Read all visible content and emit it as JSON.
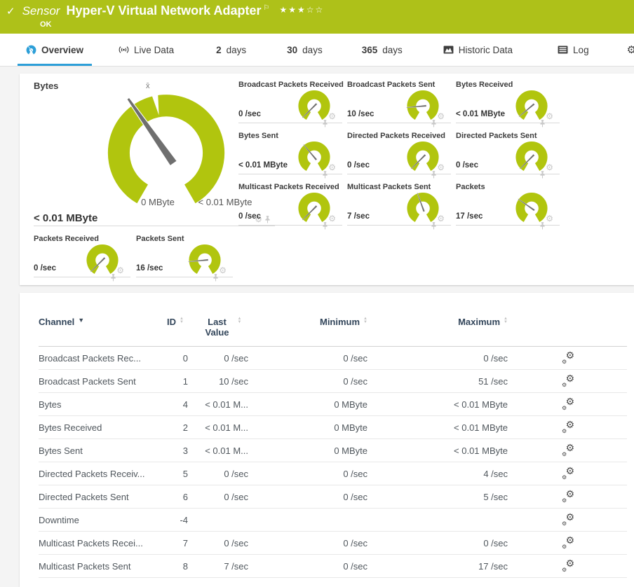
{
  "colors": {
    "green": "#aec119",
    "gauge_green": "#b1c50e",
    "blue": "#2d9fd8"
  },
  "header": {
    "check": "✓",
    "kind_label": "Sensor",
    "title": "Hyper-V Virtual Network Adapter",
    "status": "OK",
    "stars_filled": 3,
    "stars_total": 5
  },
  "tabs": [
    {
      "label": "Overview",
      "icon": "gauge",
      "active": true
    },
    {
      "label": "Live Data",
      "icon": "live"
    },
    {
      "num": "2",
      "label": "days"
    },
    {
      "num": "30",
      "label": "days"
    },
    {
      "num": "365",
      "label": "days"
    },
    {
      "label": "Historic Data",
      "icon": "chart"
    },
    {
      "label": "Log",
      "icon": "log"
    },
    {
      "label": "Settings",
      "icon": "gear"
    }
  ],
  "gauges": {
    "primary": {
      "title": "Bytes",
      "value": "< 0.01 MByte",
      "min_label": "0 MByte",
      "max_label": "< 0.01 MByte",
      "avg_marker": "x̄",
      "needle_angle": -35
    },
    "small": [
      {
        "title": "Broadcast Packets Received",
        "value": "0 /sec",
        "needle_angle": -135
      },
      {
        "title": "Broadcast Packets Sent",
        "value": "10 /sec",
        "needle_angle": -95
      },
      {
        "title": "Bytes Received",
        "value": "< 0.01 MByte",
        "needle_angle": -130
      },
      {
        "title": "Bytes Sent",
        "value": "< 0.01 MByte",
        "needle_angle": -40
      },
      {
        "title": "Directed Packets Received",
        "value": "0 /sec",
        "needle_angle": -135
      },
      {
        "title": "Directed Packets Sent",
        "value": "0 /sec",
        "needle_angle": -135
      },
      {
        "title": "Multicast Packets Received",
        "value": "0 /sec",
        "needle_angle": -135
      },
      {
        "title": "Multicast Packets Sent",
        "value": "7 /sec",
        "needle_angle": -20
      },
      {
        "title": "Packets",
        "value": "17 /sec",
        "needle_angle": -55
      },
      {
        "title": "Packets Received",
        "value": "0 /sec",
        "needle_angle": -135
      },
      {
        "title": "Packets Sent",
        "value": "16 /sec",
        "needle_angle": -95
      }
    ]
  },
  "table": {
    "columns": [
      "Channel",
      "ID",
      "Last Value",
      "Minimum",
      "Maximum"
    ],
    "rows": [
      {
        "channel": "Broadcast Packets Rec...",
        "id": "0",
        "last": "0 /sec",
        "min": "0 /sec",
        "max": "0 /sec"
      },
      {
        "channel": "Broadcast Packets Sent",
        "id": "1",
        "last": "10 /sec",
        "min": "0 /sec",
        "max": "51 /sec"
      },
      {
        "channel": "Bytes",
        "id": "4",
        "last": "< 0.01 M...",
        "min": "0 MByte",
        "max": "< 0.01 MByte"
      },
      {
        "channel": "Bytes Received",
        "id": "2",
        "last": "< 0.01 M...",
        "min": "0 MByte",
        "max": "< 0.01 MByte"
      },
      {
        "channel": "Bytes Sent",
        "id": "3",
        "last": "< 0.01 M...",
        "min": "0 MByte",
        "max": "< 0.01 MByte"
      },
      {
        "channel": "Directed Packets Receiv...",
        "id": "5",
        "last": "0 /sec",
        "min": "0 /sec",
        "max": "4 /sec"
      },
      {
        "channel": "Directed Packets Sent",
        "id": "6",
        "last": "0 /sec",
        "min": "0 /sec",
        "max": "5 /sec"
      },
      {
        "channel": "Downtime",
        "id": "-4",
        "last": "",
        "min": "",
        "max": ""
      },
      {
        "channel": "Multicast Packets Recei...",
        "id": "7",
        "last": "0 /sec",
        "min": "0 /sec",
        "max": "0 /sec"
      },
      {
        "channel": "Multicast Packets Sent",
        "id": "8",
        "last": "7 /sec",
        "min": "0 /sec",
        "max": "17 /sec"
      }
    ]
  }
}
